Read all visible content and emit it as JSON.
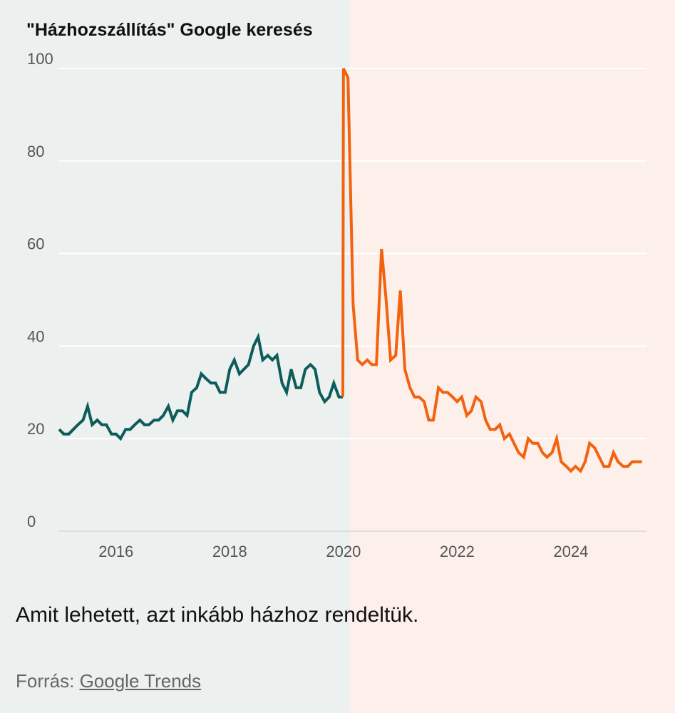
{
  "chart_data": {
    "type": "line",
    "title": "\"Házhozszállítás\" Google keresés",
    "xlabel": "",
    "ylabel": "",
    "ylim": [
      0,
      100
    ],
    "xlim": [
      2015.0,
      2025.33
    ],
    "grid": true,
    "yticks": [
      0,
      20,
      40,
      60,
      80,
      100
    ],
    "ytick_labels": [
      "0",
      "20",
      "40",
      "60",
      "80",
      "100"
    ],
    "xticks": [
      2016,
      2018,
      2020,
      2022,
      2024
    ],
    "xtick_labels": [
      "2016",
      "2018",
      "2020",
      "2022",
      "2024"
    ],
    "background_split_x": 2020.0,
    "series": [
      {
        "color": "#0d5c5a",
        "x": [
          2015.0,
          2015.08,
          2015.17,
          2015.25,
          2015.33,
          2015.42,
          2015.5,
          2015.58,
          2015.67,
          2015.75,
          2015.83,
          2015.92,
          2016.0,
          2016.08,
          2016.17,
          2016.25,
          2016.33,
          2016.42,
          2016.5,
          2016.58,
          2016.67,
          2016.75,
          2016.83,
          2016.92,
          2017.0,
          2017.08,
          2017.17,
          2017.25,
          2017.33,
          2017.42,
          2017.5,
          2017.58,
          2017.67,
          2017.75,
          2017.83,
          2017.92,
          2018.0,
          2018.08,
          2018.17,
          2018.25,
          2018.33,
          2018.42,
          2018.5,
          2018.58,
          2018.67,
          2018.75,
          2018.83,
          2018.92,
          2019.0,
          2019.08,
          2019.17,
          2019.25,
          2019.33,
          2019.42,
          2019.5,
          2019.58,
          2019.67,
          2019.75,
          2019.83,
          2019.92,
          2019.99
        ],
        "y": [
          22,
          21,
          21,
          22,
          23,
          24,
          27,
          23,
          24,
          23,
          23,
          21,
          21,
          20,
          22,
          22,
          23,
          24,
          23,
          23,
          24,
          24,
          25,
          27,
          24,
          26,
          26,
          25,
          30,
          31,
          34,
          33,
          32,
          32,
          30,
          30,
          35,
          37,
          34,
          35,
          36,
          40,
          42,
          37,
          38,
          37,
          38,
          32,
          30,
          35,
          31,
          31,
          35,
          36,
          35,
          30,
          28,
          29,
          32,
          29,
          29
        ]
      },
      {
        "color": "#f2620f",
        "x": [
          2019.99,
          2020.0,
          2020.08,
          2020.17,
          2020.25,
          2020.33,
          2020.42,
          2020.5,
          2020.58,
          2020.67,
          2020.75,
          2020.83,
          2020.92,
          2021.0,
          2021.08,
          2021.17,
          2021.25,
          2021.33,
          2021.42,
          2021.5,
          2021.58,
          2021.67,
          2021.75,
          2021.83,
          2021.92,
          2022.0,
          2022.08,
          2022.17,
          2022.25,
          2022.33,
          2022.42,
          2022.5,
          2022.58,
          2022.67,
          2022.75,
          2022.83,
          2022.92,
          2023.0,
          2023.08,
          2023.17,
          2023.25,
          2023.33,
          2023.42,
          2023.5,
          2023.58,
          2023.67,
          2023.75,
          2023.83,
          2023.92,
          2024.0,
          2024.08,
          2024.17,
          2024.25,
          2024.33,
          2024.42,
          2024.5,
          2024.58,
          2024.67,
          2024.75,
          2024.83,
          2024.92,
          2025.0,
          2025.08,
          2025.17,
          2025.25
        ],
        "y": [
          29,
          100,
          98,
          49,
          37,
          36,
          37,
          36,
          36,
          61,
          50,
          37,
          38,
          52,
          35,
          31,
          29,
          29,
          28,
          24,
          24,
          31,
          30,
          30,
          29,
          28,
          29,
          25,
          26,
          29,
          28,
          24,
          22,
          22,
          23,
          20,
          21,
          19,
          17,
          16,
          20,
          19,
          19,
          17,
          16,
          17,
          20,
          15,
          14,
          13,
          14,
          13,
          15,
          19,
          18,
          16,
          14,
          14,
          17,
          15,
          14,
          14,
          15,
          15,
          15
        ]
      }
    ]
  },
  "caption": "Amit lehetett, azt inkább házhoz rendeltük.",
  "source": {
    "prefix": "Forrás: ",
    "link_text": "Google Trends"
  },
  "colors": {
    "left_background": "#ecf1f0",
    "right_background": "#fdf0eb",
    "line_before_2020": "#0d5c5a",
    "line_after_2020": "#f2620f",
    "grid": "#ffffff"
  }
}
